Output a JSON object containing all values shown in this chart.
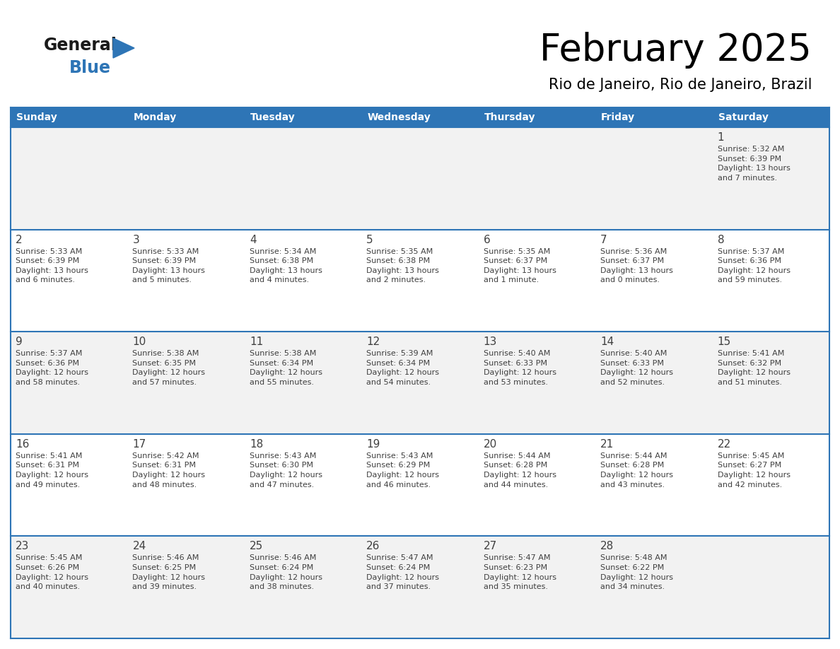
{
  "title": "February 2025",
  "subtitle": "Rio de Janeiro, Rio de Janeiro, Brazil",
  "header_bg": "#2e75b6",
  "header_text_color": "#ffffff",
  "cell_bg_odd": "#f2f2f2",
  "cell_bg_even": "#ffffff",
  "text_color": "#404040",
  "line_color": "#2e75b6",
  "days_of_week": [
    "Sunday",
    "Monday",
    "Tuesday",
    "Wednesday",
    "Thursday",
    "Friday",
    "Saturday"
  ],
  "weeks": [
    [
      {
        "day": null,
        "info": null
      },
      {
        "day": null,
        "info": null
      },
      {
        "day": null,
        "info": null
      },
      {
        "day": null,
        "info": null
      },
      {
        "day": null,
        "info": null
      },
      {
        "day": null,
        "info": null
      },
      {
        "day": "1",
        "info": "Sunrise: 5:32 AM\nSunset: 6:39 PM\nDaylight: 13 hours\nand 7 minutes."
      }
    ],
    [
      {
        "day": "2",
        "info": "Sunrise: 5:33 AM\nSunset: 6:39 PM\nDaylight: 13 hours\nand 6 minutes."
      },
      {
        "day": "3",
        "info": "Sunrise: 5:33 AM\nSunset: 6:39 PM\nDaylight: 13 hours\nand 5 minutes."
      },
      {
        "day": "4",
        "info": "Sunrise: 5:34 AM\nSunset: 6:38 PM\nDaylight: 13 hours\nand 4 minutes."
      },
      {
        "day": "5",
        "info": "Sunrise: 5:35 AM\nSunset: 6:38 PM\nDaylight: 13 hours\nand 2 minutes."
      },
      {
        "day": "6",
        "info": "Sunrise: 5:35 AM\nSunset: 6:37 PM\nDaylight: 13 hours\nand 1 minute."
      },
      {
        "day": "7",
        "info": "Sunrise: 5:36 AM\nSunset: 6:37 PM\nDaylight: 13 hours\nand 0 minutes."
      },
      {
        "day": "8",
        "info": "Sunrise: 5:37 AM\nSunset: 6:36 PM\nDaylight: 12 hours\nand 59 minutes."
      }
    ],
    [
      {
        "day": "9",
        "info": "Sunrise: 5:37 AM\nSunset: 6:36 PM\nDaylight: 12 hours\nand 58 minutes."
      },
      {
        "day": "10",
        "info": "Sunrise: 5:38 AM\nSunset: 6:35 PM\nDaylight: 12 hours\nand 57 minutes."
      },
      {
        "day": "11",
        "info": "Sunrise: 5:38 AM\nSunset: 6:34 PM\nDaylight: 12 hours\nand 55 minutes."
      },
      {
        "day": "12",
        "info": "Sunrise: 5:39 AM\nSunset: 6:34 PM\nDaylight: 12 hours\nand 54 minutes."
      },
      {
        "day": "13",
        "info": "Sunrise: 5:40 AM\nSunset: 6:33 PM\nDaylight: 12 hours\nand 53 minutes."
      },
      {
        "day": "14",
        "info": "Sunrise: 5:40 AM\nSunset: 6:33 PM\nDaylight: 12 hours\nand 52 minutes."
      },
      {
        "day": "15",
        "info": "Sunrise: 5:41 AM\nSunset: 6:32 PM\nDaylight: 12 hours\nand 51 minutes."
      }
    ],
    [
      {
        "day": "16",
        "info": "Sunrise: 5:41 AM\nSunset: 6:31 PM\nDaylight: 12 hours\nand 49 minutes."
      },
      {
        "day": "17",
        "info": "Sunrise: 5:42 AM\nSunset: 6:31 PM\nDaylight: 12 hours\nand 48 minutes."
      },
      {
        "day": "18",
        "info": "Sunrise: 5:43 AM\nSunset: 6:30 PM\nDaylight: 12 hours\nand 47 minutes."
      },
      {
        "day": "19",
        "info": "Sunrise: 5:43 AM\nSunset: 6:29 PM\nDaylight: 12 hours\nand 46 minutes."
      },
      {
        "day": "20",
        "info": "Sunrise: 5:44 AM\nSunset: 6:28 PM\nDaylight: 12 hours\nand 44 minutes."
      },
      {
        "day": "21",
        "info": "Sunrise: 5:44 AM\nSunset: 6:28 PM\nDaylight: 12 hours\nand 43 minutes."
      },
      {
        "day": "22",
        "info": "Sunrise: 5:45 AM\nSunset: 6:27 PM\nDaylight: 12 hours\nand 42 minutes."
      }
    ],
    [
      {
        "day": "23",
        "info": "Sunrise: 5:45 AM\nSunset: 6:26 PM\nDaylight: 12 hours\nand 40 minutes."
      },
      {
        "day": "24",
        "info": "Sunrise: 5:46 AM\nSunset: 6:25 PM\nDaylight: 12 hours\nand 39 minutes."
      },
      {
        "day": "25",
        "info": "Sunrise: 5:46 AM\nSunset: 6:24 PM\nDaylight: 12 hours\nand 38 minutes."
      },
      {
        "day": "26",
        "info": "Sunrise: 5:47 AM\nSunset: 6:24 PM\nDaylight: 12 hours\nand 37 minutes."
      },
      {
        "day": "27",
        "info": "Sunrise: 5:47 AM\nSunset: 6:23 PM\nDaylight: 12 hours\nand 35 minutes."
      },
      {
        "day": "28",
        "info": "Sunrise: 5:48 AM\nSunset: 6:22 PM\nDaylight: 12 hours\nand 34 minutes."
      },
      {
        "day": null,
        "info": null
      }
    ]
  ],
  "logo_general_color": "#1a1a1a",
  "logo_blue_color": "#2e75b6",
  "logo_triangle_color": "#2e75b6",
  "fig_width": 11.88,
  "fig_height": 9.18,
  "dpi": 100
}
